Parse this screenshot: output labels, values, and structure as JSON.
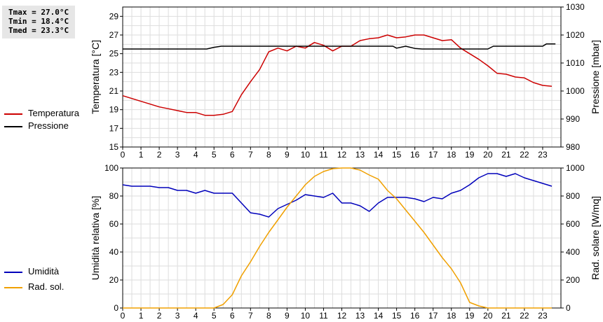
{
  "stats": {
    "tmax": "Tmax = 27.0°C",
    "tmin": "Tmin = 18.4°C",
    "tmed": "Tmed = 23.3°C"
  },
  "legend_top": [
    {
      "label": "Temperatura",
      "color": "#cc0000"
    },
    {
      "label": "Pressione",
      "color": "#000000"
    }
  ],
  "legend_bottom": [
    {
      "label": "Umidità",
      "color": "#0000bb"
    },
    {
      "label": "Rad. sol.",
      "color": "#f0a000"
    }
  ],
  "chart_data": [
    {
      "type": "line",
      "xlim": [
        0,
        24
      ],
      "xticks": [
        "0",
        "1",
        "2",
        "3",
        "4",
        "5",
        "6",
        "7",
        "8",
        "9",
        "10",
        "11",
        "12",
        "13",
        "14",
        "15",
        "16",
        "17",
        "18",
        "19",
        "20",
        "21",
        "22",
        "23"
      ],
      "grid": true,
      "left_axis": {
        "label": "Temperatura [°C]",
        "ylim": [
          15,
          30
        ],
        "ticks": [
          "15",
          "17",
          "19",
          "21",
          "23",
          "25",
          "27",
          "29"
        ]
      },
      "right_axis": {
        "label": "Pressione [mbar]",
        "ylim": [
          980,
          1030
        ],
        "ticks": [
          "980",
          "990",
          "1000",
          "1010",
          "1020",
          "1030"
        ]
      },
      "series": [
        {
          "name": "Temperatura",
          "axis": "left",
          "color": "#cc0000",
          "x": [
            0,
            0.5,
            1,
            1.5,
            2,
            2.5,
            3,
            3.5,
            4,
            4.5,
            5,
            5.5,
            6,
            6.5,
            7,
            7.5,
            8,
            8.5,
            9,
            9.5,
            10,
            10.5,
            11,
            11.5,
            12,
            12.5,
            13,
            13.5,
            14,
            14.5,
            15,
            15.5,
            16,
            16.5,
            17,
            17.5,
            18,
            18.5,
            19,
            19.5,
            20,
            20.5,
            21,
            21.5,
            22,
            22.5,
            23,
            23.5
          ],
          "y": [
            20.5,
            20.2,
            19.9,
            19.6,
            19.3,
            19.1,
            18.9,
            18.7,
            18.7,
            18.4,
            18.4,
            18.5,
            18.8,
            20.6,
            22.0,
            23.3,
            25.2,
            25.6,
            25.3,
            25.8,
            25.6,
            26.2,
            25.9,
            25.3,
            25.8,
            25.8,
            26.4,
            26.6,
            26.7,
            27.0,
            26.7,
            26.8,
            27.0,
            27.0,
            26.7,
            26.4,
            26.5,
            25.6,
            25.0,
            24.4,
            23.7,
            22.9,
            22.8,
            22.5,
            22.4,
            21.9,
            21.6,
            21.5
          ]
        },
        {
          "name": "Pressione",
          "axis": "right",
          "color": "#000000",
          "x": [
            0,
            4.6,
            5,
            5.4,
            14.8,
            15,
            15.5,
            16,
            16.4,
            20,
            20.3,
            23,
            23.2,
            23.7
          ],
          "y": [
            1015,
            1015,
            1015.6,
            1016,
            1016,
            1015.3,
            1016,
            1015.2,
            1015,
            1015,
            1016,
            1016,
            1016.8,
            1016.8
          ]
        }
      ]
    },
    {
      "type": "line",
      "xlim": [
        0,
        24
      ],
      "xticks": [
        "0",
        "1",
        "2",
        "3",
        "4",
        "5",
        "6",
        "7",
        "8",
        "9",
        "10",
        "11",
        "12",
        "13",
        "14",
        "15",
        "16",
        "17",
        "18",
        "19",
        "20",
        "21",
        "22",
        "23"
      ],
      "grid": true,
      "left_axis": {
        "label": "Umidità relativa [%]",
        "ylim": [
          0,
          100
        ],
        "ticks": [
          "0",
          "20",
          "40",
          "60",
          "80",
          "100"
        ]
      },
      "right_axis": {
        "label": "Rad. solare [W/mq]",
        "ylim": [
          0,
          1000
        ],
        "ticks": [
          "0",
          "200",
          "400",
          "600",
          "800",
          "1000"
        ]
      },
      "series": [
        {
          "name": "Umidità",
          "axis": "left",
          "color": "#0000bb",
          "x": [
            0,
            0.5,
            1,
            1.5,
            2,
            2.5,
            3,
            3.5,
            4,
            4.5,
            5,
            5.5,
            6,
            6.5,
            7,
            7.5,
            8,
            8.5,
            9,
            9.5,
            10,
            10.5,
            11,
            11.5,
            12,
            12.5,
            13,
            13.5,
            14,
            14.5,
            15,
            15.5,
            16,
            16.5,
            17,
            17.5,
            18,
            18.5,
            19,
            19.5,
            20,
            20.5,
            21,
            21.5,
            22,
            22.5,
            23,
            23.5
          ],
          "y": [
            88,
            87,
            87,
            87,
            86,
            86,
            84,
            84,
            82,
            84,
            82,
            82,
            82,
            75,
            68,
            67,
            65,
            71,
            74,
            77,
            81,
            80,
            79,
            82,
            75,
            75,
            73,
            69,
            75,
            79,
            79,
            79,
            78,
            76,
            79,
            78,
            82,
            84,
            88,
            93,
            96,
            96,
            94,
            96,
            93,
            91,
            89,
            87
          ]
        },
        {
          "name": "Rad. sol.",
          "axis": "right",
          "color": "#f0a000",
          "x": [
            0,
            0.5,
            1,
            1.5,
            2,
            2.5,
            3,
            3.5,
            4,
            4.5,
            5,
            5.5,
            6,
            6.5,
            7,
            7.5,
            8,
            8.5,
            9,
            9.5,
            10,
            10.5,
            11,
            11.5,
            12,
            12.5,
            13,
            13.5,
            14,
            14.5,
            15,
            15.5,
            16,
            16.5,
            17,
            17.5,
            18,
            18.5,
            19,
            19.5,
            20,
            20.5,
            21,
            21.5,
            22,
            22.5,
            23,
            23.5
          ],
          "y": [
            0,
            0,
            0,
            0,
            0,
            0,
            0,
            0,
            0,
            0,
            0,
            25,
            95,
            230,
            330,
            440,
            540,
            630,
            720,
            800,
            880,
            940,
            975,
            995,
            1000,
            1000,
            985,
            950,
            920,
            840,
            780,
            700,
            620,
            540,
            450,
            360,
            280,
            180,
            40,
            15,
            0,
            0,
            0,
            0,
            0,
            0,
            0,
            0
          ]
        }
      ]
    }
  ]
}
